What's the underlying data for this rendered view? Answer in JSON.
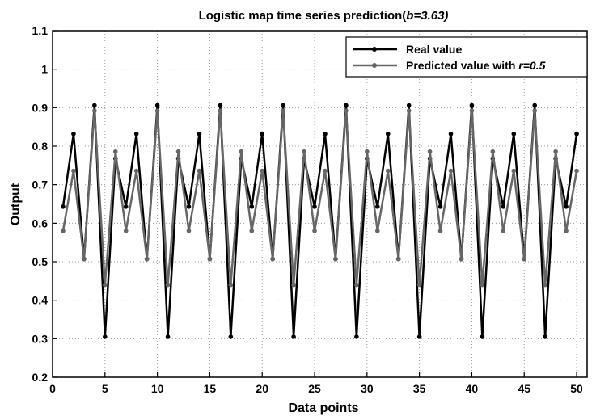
{
  "chart_data": {
    "type": "line",
    "title": "Logistic map time series prediction(",
    "title_param": "b=3.63)",
    "xlabel": "Data points",
    "ylabel": "Output",
    "xlim": [
      0,
      51
    ],
    "ylim": [
      0.2,
      1.1
    ],
    "xticks": [
      0,
      5,
      10,
      15,
      20,
      25,
      30,
      35,
      40,
      45,
      50
    ],
    "yticks": [
      0.2,
      0.3,
      0.4,
      0.5,
      0.6,
      0.7,
      0.8,
      0.9,
      1,
      1.1
    ],
    "xtick_labels": [
      "0",
      "5",
      "10",
      "15",
      "20",
      "25",
      "30",
      "35",
      "40",
      "45",
      "50"
    ],
    "ytick_labels": [
      "0.2",
      "0.3",
      "0.4",
      "0.5",
      "0.6",
      "0.7",
      "0.8",
      "0.9",
      "1",
      "1.1"
    ],
    "grid": true,
    "legend_position": "top-right",
    "x": [
      1,
      2,
      3,
      4,
      5,
      6,
      7,
      8,
      9,
      10,
      11,
      12,
      13,
      14,
      15,
      16,
      17,
      18,
      19,
      20,
      21,
      22,
      23,
      24,
      25,
      26,
      27,
      28,
      29,
      30,
      31,
      32,
      33,
      34,
      35,
      36,
      37,
      38,
      39,
      40,
      41,
      42,
      43,
      44,
      45,
      46,
      47,
      48,
      49,
      50
    ],
    "series": [
      {
        "name": "Real value",
        "color": "#000000",
        "values": [
          0.643,
          0.832,
          0.507,
          0.906,
          0.305,
          0.768,
          0.643,
          0.832,
          0.507,
          0.906,
          0.305,
          0.768,
          0.643,
          0.832,
          0.507,
          0.906,
          0.305,
          0.768,
          0.643,
          0.832,
          0.507,
          0.906,
          0.305,
          0.768,
          0.643,
          0.832,
          0.507,
          0.906,
          0.305,
          0.768,
          0.643,
          0.832,
          0.507,
          0.906,
          0.305,
          0.768,
          0.643,
          0.832,
          0.507,
          0.906,
          0.305,
          0.768,
          0.643,
          0.832,
          0.507,
          0.906,
          0.305,
          0.768,
          0.643,
          0.832
        ]
      },
      {
        "name": "Predicted value with ",
        "name_param": "r=0.5",
        "color": "#666666",
        "values": [
          0.58,
          0.736,
          0.507,
          0.892,
          0.44,
          0.786,
          0.58,
          0.736,
          0.507,
          0.892,
          0.44,
          0.786,
          0.58,
          0.736,
          0.507,
          0.892,
          0.44,
          0.786,
          0.58,
          0.736,
          0.507,
          0.892,
          0.44,
          0.786,
          0.58,
          0.736,
          0.507,
          0.892,
          0.44,
          0.786,
          0.58,
          0.736,
          0.507,
          0.892,
          0.44,
          0.786,
          0.58,
          0.736,
          0.507,
          0.892,
          0.44,
          0.786,
          0.58,
          0.736,
          0.507,
          0.892,
          0.44,
          0.786,
          0.58,
          0.736
        ]
      }
    ]
  }
}
